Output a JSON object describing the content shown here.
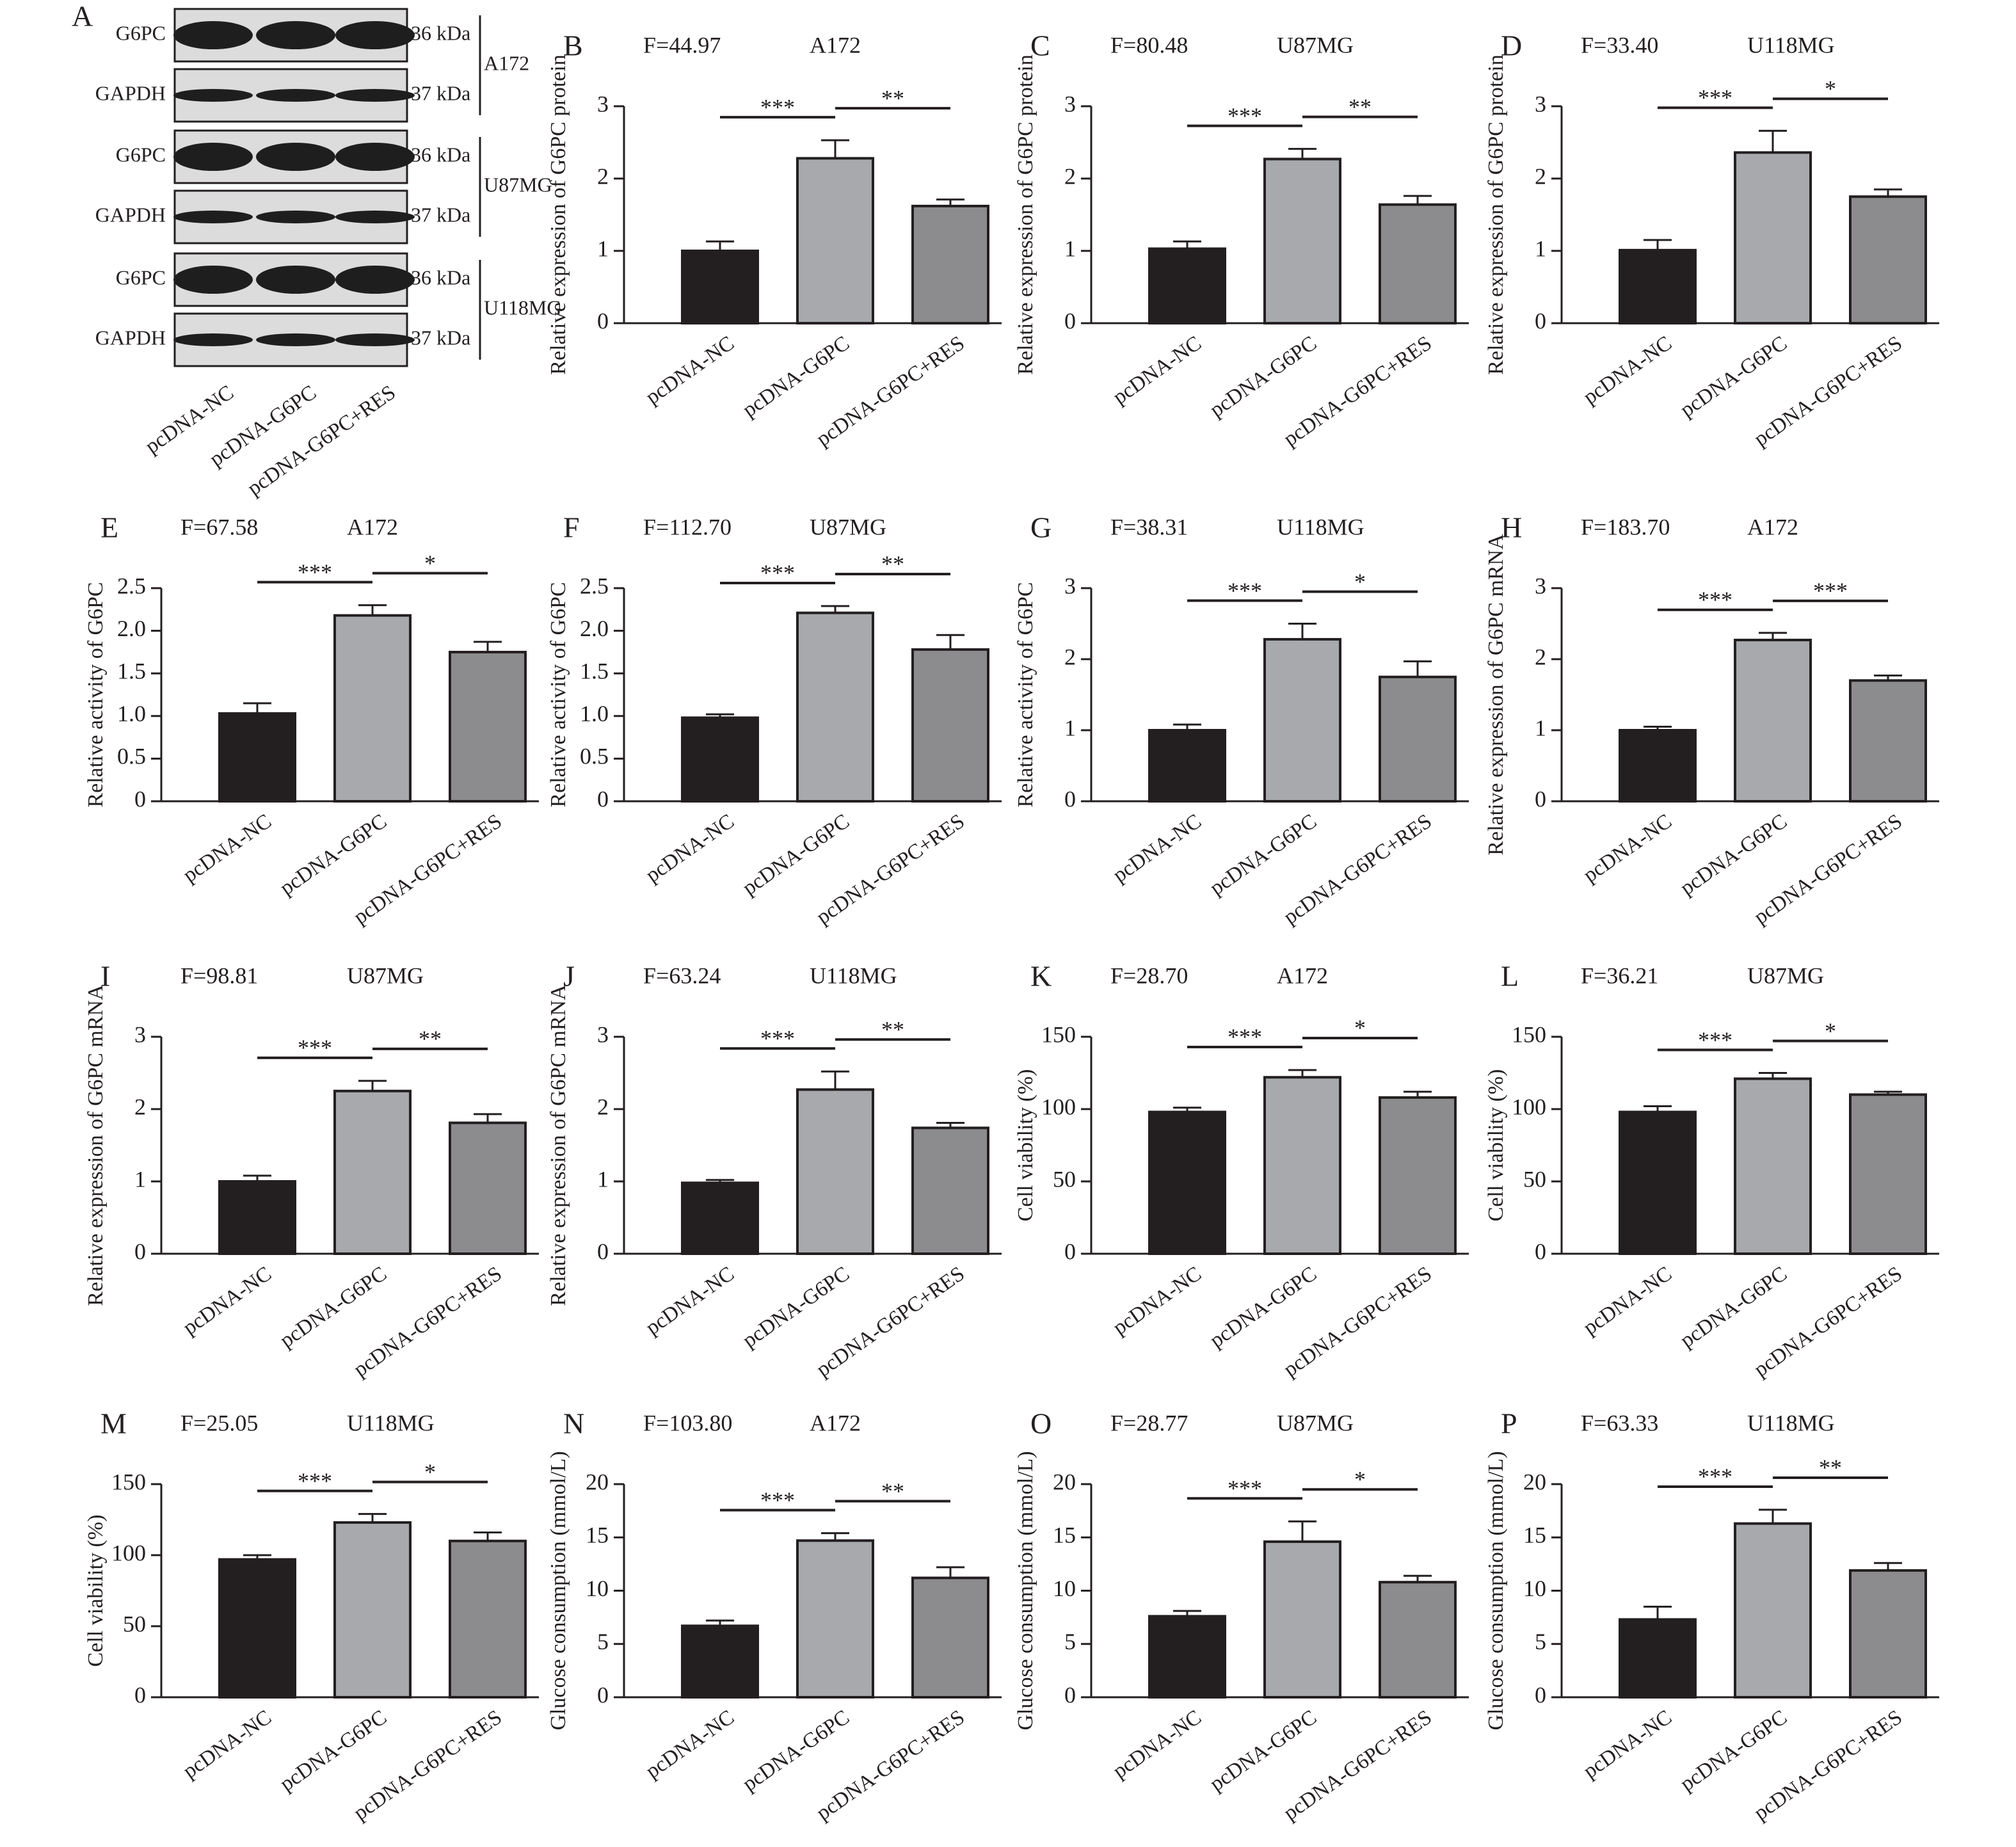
{
  "blot": {
    "panel": "A",
    "rows": [
      "G6PC",
      "GAPDH",
      "G6PC",
      "GAPDH",
      "G6PC",
      "GAPDH"
    ],
    "sizes": [
      "36 kDa",
      "37 kDa",
      "36 kDa",
      "37 kDa",
      "36 kDa",
      "37 kDa"
    ],
    "cell_lines": [
      "A172",
      "U87MG",
      "U118MG"
    ],
    "categories": [
      "pcDNA-NC",
      "pcDNA-G6PC",
      "pcDNA-G6PC+RES"
    ]
  },
  "chart_data": [
    {
      "type": "bar",
      "panel": "B",
      "f_stat": "F=44.97",
      "cell_line": "A172",
      "ylabel": "Relative expression of G6PC protein",
      "categories": [
        "pcDNA-NC",
        "pcDNA-G6PC",
        "pcDNA-G6PC+RES"
      ],
      "values": [
        1.0,
        2.28,
        1.62
      ],
      "errors": [
        0.13,
        0.25,
        0.09
      ],
      "colors": [
        "#231f20",
        "#a7a9ac",
        "#8c8c8e"
      ],
      "ylim": [
        0,
        3
      ],
      "yticks": [
        0,
        1,
        2,
        3
      ],
      "significance": [
        "***",
        "**"
      ]
    },
    {
      "type": "bar",
      "panel": "C",
      "f_stat": "F=80.48",
      "cell_line": "U87MG",
      "ylabel": "Relative expression of G6PC protein",
      "categories": [
        "pcDNA-NC",
        "pcDNA-G6PC",
        "pcDNA-G6PC+RES"
      ],
      "values": [
        1.03,
        2.27,
        1.64
      ],
      "errors": [
        0.1,
        0.14,
        0.12
      ],
      "colors": [
        "#231f20",
        "#a7a9ac",
        "#8c8c8e"
      ],
      "ylim": [
        0,
        3
      ],
      "yticks": [
        0,
        1,
        2,
        3
      ],
      "significance": [
        "***",
        "**"
      ]
    },
    {
      "type": "bar",
      "panel": "D",
      "f_stat": "F=33.40",
      "cell_line": "U118MG",
      "ylabel": "Relative expression of G6PC protein",
      "categories": [
        "pcDNA-NC",
        "pcDNA-G6PC",
        "pcDNA-G6PC+RES"
      ],
      "values": [
        1.01,
        2.36,
        1.75
      ],
      "errors": [
        0.14,
        0.3,
        0.1
      ],
      "colors": [
        "#231f20",
        "#a7a9ac",
        "#8c8c8e"
      ],
      "ylim": [
        0,
        3
      ],
      "yticks": [
        0,
        1,
        2,
        3
      ],
      "significance": [
        "***",
        "*"
      ]
    },
    {
      "type": "bar",
      "panel": "E",
      "f_stat": "F=67.58",
      "cell_line": "A172",
      "ylabel": "Relative activity of G6PC",
      "categories": [
        "pcDNA-NC",
        "pcDNA-G6PC",
        "pcDNA-G6PC+RES"
      ],
      "values": [
        1.03,
        2.18,
        1.75
      ],
      "errors": [
        0.12,
        0.12,
        0.12
      ],
      "colors": [
        "#231f20",
        "#a7a9ac",
        "#8c8c8e"
      ],
      "ylim": [
        0,
        2.5
      ],
      "yticks": [
        0,
        0.5,
        {
          "value": 1,
          "label": "1.0"
        },
        1.5,
        {
          "value": 2,
          "label": "2.0"
        },
        2.5
      ],
      "significance": [
        "***",
        "*"
      ]
    },
    {
      "type": "bar",
      "panel": "F",
      "f_stat": "F=112.70",
      "cell_line": "U87MG",
      "ylabel": "Relative activity of G6PC",
      "categories": [
        "pcDNA-NC",
        "pcDNA-G6PC",
        "pcDNA-G6PC+RES"
      ],
      "values": [
        0.98,
        2.21,
        1.78
      ],
      "errors": [
        0.04,
        0.08,
        0.17
      ],
      "colors": [
        "#231f20",
        "#a7a9ac",
        "#8c8c8e"
      ],
      "ylim": [
        0,
        2.5
      ],
      "yticks": [
        0,
        0.5,
        {
          "value": 1,
          "label": "1.0"
        },
        1.5,
        {
          "value": 2,
          "label": "2.0"
        },
        2.5
      ],
      "significance": [
        "***",
        "**"
      ]
    },
    {
      "type": "bar",
      "panel": "G",
      "f_stat": "F=38.31",
      "cell_line": "U118MG",
      "ylabel": "Relative activity of G6PC",
      "categories": [
        "pcDNA-NC",
        "pcDNA-G6PC",
        "pcDNA-G6PC+RES"
      ],
      "values": [
        1.0,
        2.28,
        1.75
      ],
      "errors": [
        0.08,
        0.22,
        0.22
      ],
      "colors": [
        "#231f20",
        "#a7a9ac",
        "#8c8c8e"
      ],
      "ylim": [
        0,
        3
      ],
      "yticks": [
        0,
        1,
        2,
        3
      ],
      "significance": [
        "***",
        "*"
      ]
    },
    {
      "type": "bar",
      "panel": "H",
      "f_stat": "F=183.70",
      "cell_line": "A172",
      "ylabel": "Relative expression of G6PC mRNA",
      "categories": [
        "pcDNA-NC",
        "pcDNA-G6PC",
        "pcDNA-G6PC+RES"
      ],
      "values": [
        1.0,
        2.27,
        1.7
      ],
      "errors": [
        0.05,
        0.1,
        0.07
      ],
      "colors": [
        "#231f20",
        "#a7a9ac",
        "#8c8c8e"
      ],
      "ylim": [
        0,
        3
      ],
      "yticks": [
        0,
        1,
        2,
        3
      ],
      "significance": [
        "***",
        "***"
      ]
    },
    {
      "type": "bar",
      "panel": "I",
      "f_stat": "F=98.81",
      "cell_line": "U87MG",
      "ylabel": "Relative expression of G6PC mRNA",
      "categories": [
        "pcDNA-NC",
        "pcDNA-G6PC",
        "pcDNA-G6PC+RES"
      ],
      "values": [
        1.0,
        2.25,
        1.81
      ],
      "errors": [
        0.08,
        0.14,
        0.12
      ],
      "colors": [
        "#231f20",
        "#a7a9ac",
        "#8c8c8e"
      ],
      "ylim": [
        0,
        3
      ],
      "yticks": [
        0,
        1,
        2,
        3
      ],
      "significance": [
        "***",
        "**"
      ]
    },
    {
      "type": "bar",
      "panel": "J",
      "f_stat": "F=63.24",
      "cell_line": "U118MG",
      "ylabel": "Relative expression of G6PC mRNA",
      "categories": [
        "pcDNA-NC",
        "pcDNA-G6PC",
        "pcDNA-G6PC+RES"
      ],
      "values": [
        0.98,
        2.27,
        1.74
      ],
      "errors": [
        0.04,
        0.25,
        0.07
      ],
      "colors": [
        "#231f20",
        "#a7a9ac",
        "#8c8c8e"
      ],
      "ylim": [
        0,
        3
      ],
      "yticks": [
        0,
        1,
        2,
        3
      ],
      "significance": [
        "***",
        "**"
      ]
    },
    {
      "type": "bar",
      "panel": "K",
      "f_stat": "F=28.70",
      "cell_line": "A172",
      "ylabel": "Cell viability (%)",
      "categories": [
        "pcDNA-NC",
        "pcDNA-G6PC",
        "pcDNA-G6PC+RES"
      ],
      "values": [
        98,
        122,
        108
      ],
      "errors": [
        3,
        5,
        4
      ],
      "colors": [
        "#231f20",
        "#a7a9ac",
        "#8c8c8e"
      ],
      "ylim": [
        0,
        150
      ],
      "yticks": [
        0,
        50,
        100,
        150
      ],
      "significance": [
        "***",
        "*"
      ]
    },
    {
      "type": "bar",
      "panel": "L",
      "f_stat": "F=36.21",
      "cell_line": "U87MG",
      "ylabel": "Cell viability (%)",
      "categories": [
        "pcDNA-NC",
        "pcDNA-G6PC",
        "pcDNA-G6PC+RES"
      ],
      "values": [
        98,
        121,
        110
      ],
      "errors": [
        4,
        4,
        2
      ],
      "colors": [
        "#231f20",
        "#a7a9ac",
        "#8c8c8e"
      ],
      "ylim": [
        0,
        150
      ],
      "yticks": [
        0,
        50,
        100,
        150
      ],
      "significance": [
        "***",
        "*"
      ]
    },
    {
      "type": "bar",
      "panel": "M",
      "f_stat": "F=25.05",
      "cell_line": "U118MG",
      "ylabel": "Cell viability (%)",
      "categories": [
        "pcDNA-NC",
        "pcDNA-G6PC",
        "pcDNA-G6PC+RES"
      ],
      "values": [
        97,
        123,
        110
      ],
      "errors": [
        3,
        6,
        6
      ],
      "colors": [
        "#231f20",
        "#a7a9ac",
        "#8c8c8e"
      ],
      "ylim": [
        0,
        150
      ],
      "yticks": [
        0,
        50,
        100,
        150
      ],
      "significance": [
        "***",
        "*"
      ]
    },
    {
      "type": "bar",
      "panel": "N",
      "f_stat": "F=103.80",
      "cell_line": "A172",
      "ylabel": "Glucose consumption (mmol/L)",
      "categories": [
        "pcDNA-NC",
        "pcDNA-G6PC",
        "pcDNA-G6PC+RES"
      ],
      "values": [
        6.7,
        14.7,
        11.2
      ],
      "errors": [
        0.5,
        0.7,
        1.0
      ],
      "colors": [
        "#231f20",
        "#a7a9ac",
        "#8c8c8e"
      ],
      "ylim": [
        0,
        20
      ],
      "yticks": [
        0,
        5,
        10,
        15,
        20
      ],
      "significance": [
        "***",
        "**"
      ]
    },
    {
      "type": "bar",
      "panel": "O",
      "f_stat": "F=28.77",
      "cell_line": "U87MG",
      "ylabel": "Glucose consumption (mmol/L)",
      "categories": [
        "pcDNA-NC",
        "pcDNA-G6PC",
        "pcDNA-G6PC+RES"
      ],
      "values": [
        7.6,
        14.6,
        10.8
      ],
      "errors": [
        0.5,
        1.9,
        0.6
      ],
      "colors": [
        "#231f20",
        "#a7a9ac",
        "#8c8c8e"
      ],
      "ylim": [
        0,
        20
      ],
      "yticks": [
        0,
        5,
        10,
        15,
        20
      ],
      "significance": [
        "***",
        "*"
      ]
    },
    {
      "type": "bar",
      "panel": "P",
      "f_stat": "F=63.33",
      "cell_line": "U118MG",
      "ylabel": "Glucose consumption (mmol/L)",
      "categories": [
        "pcDNA-NC",
        "pcDNA-G6PC",
        "pcDNA-G6PC+RES"
      ],
      "values": [
        7.3,
        16.3,
        11.9
      ],
      "errors": [
        1.2,
        1.3,
        0.7
      ],
      "colors": [
        "#231f20",
        "#a7a9ac",
        "#8c8c8e"
      ],
      "ylim": [
        0,
        20
      ],
      "yticks": [
        0,
        5,
        10,
        15,
        20
      ],
      "significance": [
        "***",
        "**"
      ]
    }
  ]
}
